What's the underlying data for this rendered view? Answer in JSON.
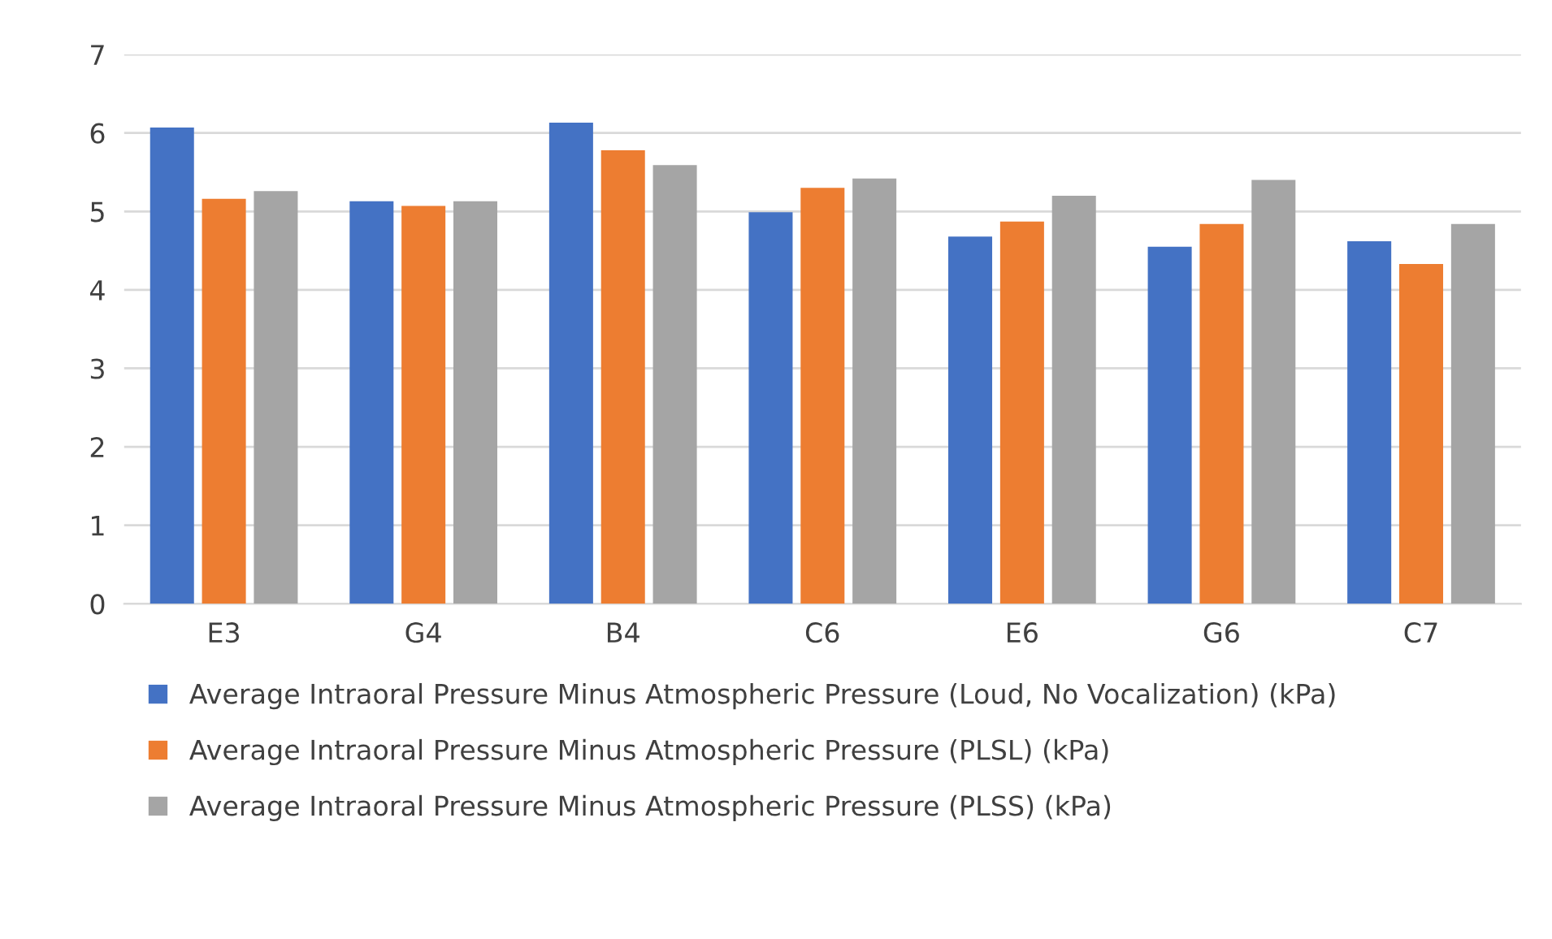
{
  "chart_data": {
    "type": "bar",
    "categories": [
      "E3",
      "G4",
      "B4",
      "C6",
      "E6",
      "G6",
      "C7"
    ],
    "series": [
      {
        "name": "Average Intraoral Pressure Minus Atmospheric Pressure (Loud, No Vocalization) (kPa)",
        "color": "#4472c4",
        "values": [
          6.07,
          5.13,
          6.13,
          4.99,
          4.68,
          4.55,
          4.62
        ]
      },
      {
        "name": "Average Intraoral Pressure Minus Atmospheric Pressure (PLSL) (kPa)",
        "color": "#ed7d31",
        "values": [
          5.16,
          5.07,
          5.78,
          5.3,
          4.87,
          4.84,
          4.33
        ]
      },
      {
        "name": "Average Intraoral Pressure Minus Atmospheric Pressure (PLSS) (kPa)",
        "color": "#a5a5a5",
        "values": [
          5.26,
          5.13,
          5.59,
          5.42,
          5.2,
          5.4,
          4.84
        ]
      }
    ],
    "ylim": [
      0,
      7
    ],
    "yticks": [
      0,
      1,
      2,
      3,
      4,
      5,
      6,
      7
    ],
    "grid": "y",
    "legend": "bottom"
  }
}
